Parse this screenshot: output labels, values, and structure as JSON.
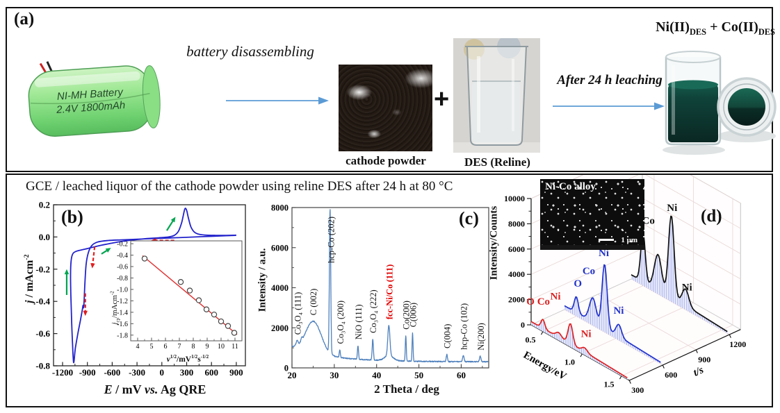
{
  "panel_a": {
    "label": "(a)",
    "battery_line1": "NI-MH Battery",
    "battery_line2": "2.4V 1800mAh",
    "step1": "battery disassembling",
    "plus": "+",
    "cathode_caption": "cathode powder",
    "des_caption": "DES (Reline)",
    "step2": "After 24 h leaching",
    "product": {
      "ni": "Ni(II)",
      "ni_sub": "DES",
      "plus": " + ",
      "co": "Co(II)",
      "co_sub": "DES"
    }
  },
  "bottom_title": "GCE / leached liquor of the cathode powder using reline DES after 24 h at 80 °C",
  "panel_b": {
    "label": "(b)",
    "xlabel": {
      "e": "E",
      "mid": " / mV ",
      "vs": "vs.",
      "rest": " Ag QRE"
    },
    "ylabel": {
      "j": "j",
      "rest": " / mAcm",
      "sup": "-2"
    },
    "inset": {
      "ylabel": {
        "j": "j",
        "sub": "cp",
        "rest": "/mAcm",
        "sup": "-2"
      },
      "xlabel": {
        "v": "v",
        "sup1": "1/2",
        "mid": "/mV",
        "sup2": "1/2",
        "s": "s",
        "sup3": "-1/2"
      }
    }
  },
  "panel_c": {
    "label": "(c)",
    "xlabel": "2 Theta / deg",
    "ylabel": "Intensity / a.u."
  },
  "panel_d": {
    "label": "(d)",
    "zlabel": "Intensity/Counts",
    "inset_label": "Ni-Co alloy",
    "scalebar": "1 μm"
  },
  "chart_data": [
    {
      "id": "cv",
      "type": "line",
      "panel": "(b)",
      "title": "GCE / leached liquor of the cathode powder using reline DES after 24 h at 80 °C",
      "xlabel": "E / mV vs. Ag QRE",
      "ylabel": "j / mAcm^-2",
      "xlim": [
        -1309,
        1010
      ],
      "ylim": [
        -0.8,
        0.2
      ],
      "xticks": [
        -1200,
        -900,
        -600,
        -300,
        0,
        300,
        600,
        900
      ],
      "yticks": [
        "0.2",
        "0.0",
        "-0.2",
        "-0.4",
        "-0.6",
        "-0.8"
      ],
      "color": "#2222cc",
      "green": "#00a550",
      "red": "#e02020",
      "curve": [
        [
          900,
          0.01
        ],
        [
          700,
          0.006
        ],
        [
          500,
          0.002
        ],
        [
          300,
          -0.002
        ],
        [
          100,
          -0.006
        ],
        [
          -100,
          -0.01
        ],
        [
          -300,
          -0.014
        ],
        [
          -500,
          -0.018
        ],
        [
          -650,
          -0.022
        ],
        [
          -780,
          -0.032
        ],
        [
          -850,
          -0.055
        ],
        [
          -890,
          -0.1
        ],
        [
          -915,
          -0.17
        ],
        [
          -930,
          -0.29
        ],
        [
          -941,
          -0.41
        ],
        [
          -947,
          -0.44
        ],
        [
          -953,
          -0.425
        ],
        [
          -962,
          -0.455
        ],
        [
          -985,
          -0.52
        ],
        [
          -1015,
          -0.6
        ],
        [
          -1045,
          -0.69
        ],
        [
          -1066,
          -0.78
        ],
        [
          -1080,
          -0.66
        ],
        [
          -1092,
          -0.5
        ],
        [
          -1100,
          -0.36
        ],
        [
          -1103,
          -0.25
        ],
        [
          -1100,
          -0.17
        ],
        [
          -1090,
          -0.125
        ],
        [
          -1070,
          -0.1
        ],
        [
          -1030,
          -0.088
        ],
        [
          -970,
          -0.08
        ],
        [
          -900,
          -0.072
        ],
        [
          -820,
          -0.062
        ],
        [
          -720,
          -0.05
        ],
        [
          -600,
          -0.038
        ],
        [
          -460,
          -0.026
        ],
        [
          -320,
          -0.017
        ],
        [
          -180,
          -0.01
        ],
        [
          -40,
          -0.005
        ],
        [
          80,
          0
        ],
        [
          150,
          0.01
        ],
        [
          200,
          0.035
        ],
        [
          240,
          0.09
        ],
        [
          268,
          0.155
        ],
        [
          282,
          0.178
        ],
        [
          300,
          0.165
        ],
        [
          320,
          0.12
        ],
        [
          350,
          0.065
        ],
        [
          390,
          0.032
        ],
        [
          440,
          0.018
        ],
        [
          520,
          0.012
        ],
        [
          650,
          0.01
        ],
        [
          780,
          0.01
        ],
        [
          900,
          0.011
        ]
      ],
      "arrows_green": [
        [
          -1150,
          -0.36,
          -1150,
          -0.2
        ],
        [
          -730,
          -0.105,
          -615,
          -0.068
        ],
        [
          60,
          0.04,
          165,
          0.125
        ]
      ],
      "arrows_red": [
        [
          150,
          -0.022,
          -130,
          -0.022
        ],
        [
          -812,
          -0.06,
          -842,
          -0.195
        ],
        [
          -925,
          -0.35,
          -925,
          -0.49
        ]
      ]
    },
    {
      "id": "cvinset",
      "type": "scatter",
      "xlabel": "v^1/2 / mV^1/2 s^-1/2",
      "ylabel": "j_cp / mAcm^-2",
      "xlim": [
        3.5,
        11.5
      ],
      "ylim": [
        -1.9,
        -0.15
      ],
      "xticks": [
        4,
        5,
        6,
        7,
        8,
        9,
        10,
        11
      ],
      "yticks": [
        "-0.2",
        "-0.4",
        "-0.6",
        "-0.8",
        "-1.0",
        "-1.2",
        "-1.4",
        "-1.6",
        "-1.8"
      ],
      "points": [
        [
          4.5,
          -0.46
        ],
        [
          7.1,
          -0.87
        ],
        [
          7.75,
          -1.02
        ],
        [
          8.4,
          -1.19
        ],
        [
          8.95,
          -1.35
        ],
        [
          9.5,
          -1.44
        ],
        [
          10.0,
          -1.56
        ],
        [
          10.5,
          -1.64
        ],
        [
          10.95,
          -1.76
        ]
      ],
      "fit": [
        [
          4.35,
          -0.41
        ],
        [
          11.15,
          -1.79
        ]
      ],
      "fit_color": "#e03030"
    },
    {
      "id": "xrd",
      "type": "line",
      "panel": "(c)",
      "xlabel": "2 Theta / deg",
      "ylabel": "Intensity / a.u.",
      "xlim": [
        20,
        66.5
      ],
      "ylim": [
        0,
        8000
      ],
      "xticks": [
        20,
        30,
        40,
        50,
        60
      ],
      "yticks": [
        0,
        2000,
        4000,
        6000,
        8000
      ],
      "line_color": "#4f81bd",
      "profile_model": {
        "baseline": [
          300,
          750,
          9
        ],
        "hump": [
          25.1,
          2.6,
          1600
        ],
        "peaks": [
          [
            21.2,
            230,
            0.35
          ],
          [
            22.3,
            140,
            0.25
          ],
          [
            29,
            7200,
            0.22
          ],
          [
            31.3,
            380,
            0.18
          ],
          [
            35.6,
            680,
            0.18
          ],
          [
            39.1,
            1050,
            0.2
          ],
          [
            42.9,
            1500,
            0.35
          ],
          [
            42.9,
            260,
            1.4
          ],
          [
            46.9,
            1280,
            0.16
          ],
          [
            48.5,
            1400,
            0.16
          ],
          [
            56.6,
            360,
            0.2
          ],
          [
            60.5,
            300,
            0.25
          ],
          [
            64.5,
            270,
            0.25
          ]
        ]
      },
      "peak_labels": [
        {
          "x": 21.2,
          "text": "Co₃O₄ (111)"
        },
        {
          "x": 24.9,
          "text": "C (002)"
        },
        {
          "x": 29.1,
          "text": "hcp-Co (202)",
          "y": 97
        },
        {
          "x": 31.3,
          "text": "Co₃O₄ (200)"
        },
        {
          "x": 35.6,
          "text": "NiO (111)"
        },
        {
          "x": 39.1,
          "text": "Co₃O₄ (222)"
        },
        {
          "x": 42.9,
          "text": "fcc-Ni/Co (111)",
          "color": "#e00000"
        },
        {
          "x": 46.9,
          "text": "Co(200)"
        },
        {
          "x": 48.5,
          "text": "C(006)"
        },
        {
          "x": 56.6,
          "text": "C(004)"
        },
        {
          "x": 60.5,
          "text": "hcp-Co (102)"
        },
        {
          "x": 64.5,
          "text": "Ni(200)"
        }
      ]
    },
    {
      "id": "eds3d",
      "type": "area",
      "projection": "3d-waterfall",
      "panel": "(d)",
      "xlabel": "Energy/eV",
      "ylabel": "t/s",
      "zlabel": "Intensity/Counts",
      "xlim": [
        0.35,
        1.6
      ],
      "tlim": [
        300,
        1300
      ],
      "zlim": [
        0,
        10000
      ],
      "xticks": [
        "0.5",
        "1.0",
        "1.5"
      ],
      "yticks": [
        "300",
        "600",
        "900",
        "1200"
      ],
      "zticks": [
        0,
        2000,
        4000,
        6000,
        8000,
        10000
      ],
      "hatch_color": "#98a2e8",
      "series": [
        {
          "t": 300,
          "color": "#dd2222",
          "base": 260,
          "peaks": [
            [
              0.5,
              700,
              0.034
            ],
            [
              0.7,
              360,
              0.05
            ],
            [
              0.85,
              1600,
              0.042
            ],
            [
              1.03,
              320,
              0.05
            ]
          ],
          "labels": [
            {
              "text": "O Co",
              "E": 0.44,
              "I": 1900
            },
            {
              "text": "Ni",
              "E": 0.66,
              "I": 3100
            },
            {
              "text": "Ni",
              "E": 1.05,
              "I": 1500
            }
          ]
        },
        {
          "t": 600,
          "color": "#2233cc",
          "base": 300,
          "peaks": [
            [
              0.5,
              1250,
              0.036
            ],
            [
              0.71,
              1900,
              0.06
            ],
            [
              0.86,
              5100,
              0.045
            ],
            [
              1.04,
              950,
              0.05
            ]
          ],
          "labels": [
            {
              "text": "O",
              "E": 0.52,
              "I": 2400
            },
            {
              "text": "Co",
              "E": 0.66,
              "I": 3900
            },
            {
              "text": "Ni",
              "E": 0.85,
              "I": 6000
            },
            {
              "text": "Ni",
              "E": 1.04,
              "I": 2100
            }
          ]
        },
        {
          "t": 1200,
          "color": "#111111",
          "base": 340,
          "peaks": [
            [
              0.5,
              3900,
              0.04
            ],
            [
              0.69,
              2800,
              0.065
            ],
            [
              0.86,
              6500,
              0.05
            ],
            [
              1.04,
              1300,
              0.06
            ]
          ],
          "labels": [
            {
              "text": "O Co",
              "E": 0.5,
              "I": 4900
            },
            {
              "text": "Ni",
              "E": 0.87,
              "I": 7200
            },
            {
              "text": "Ni",
              "E": 1.06,
              "I": 1600
            }
          ]
        }
      ]
    }
  ]
}
